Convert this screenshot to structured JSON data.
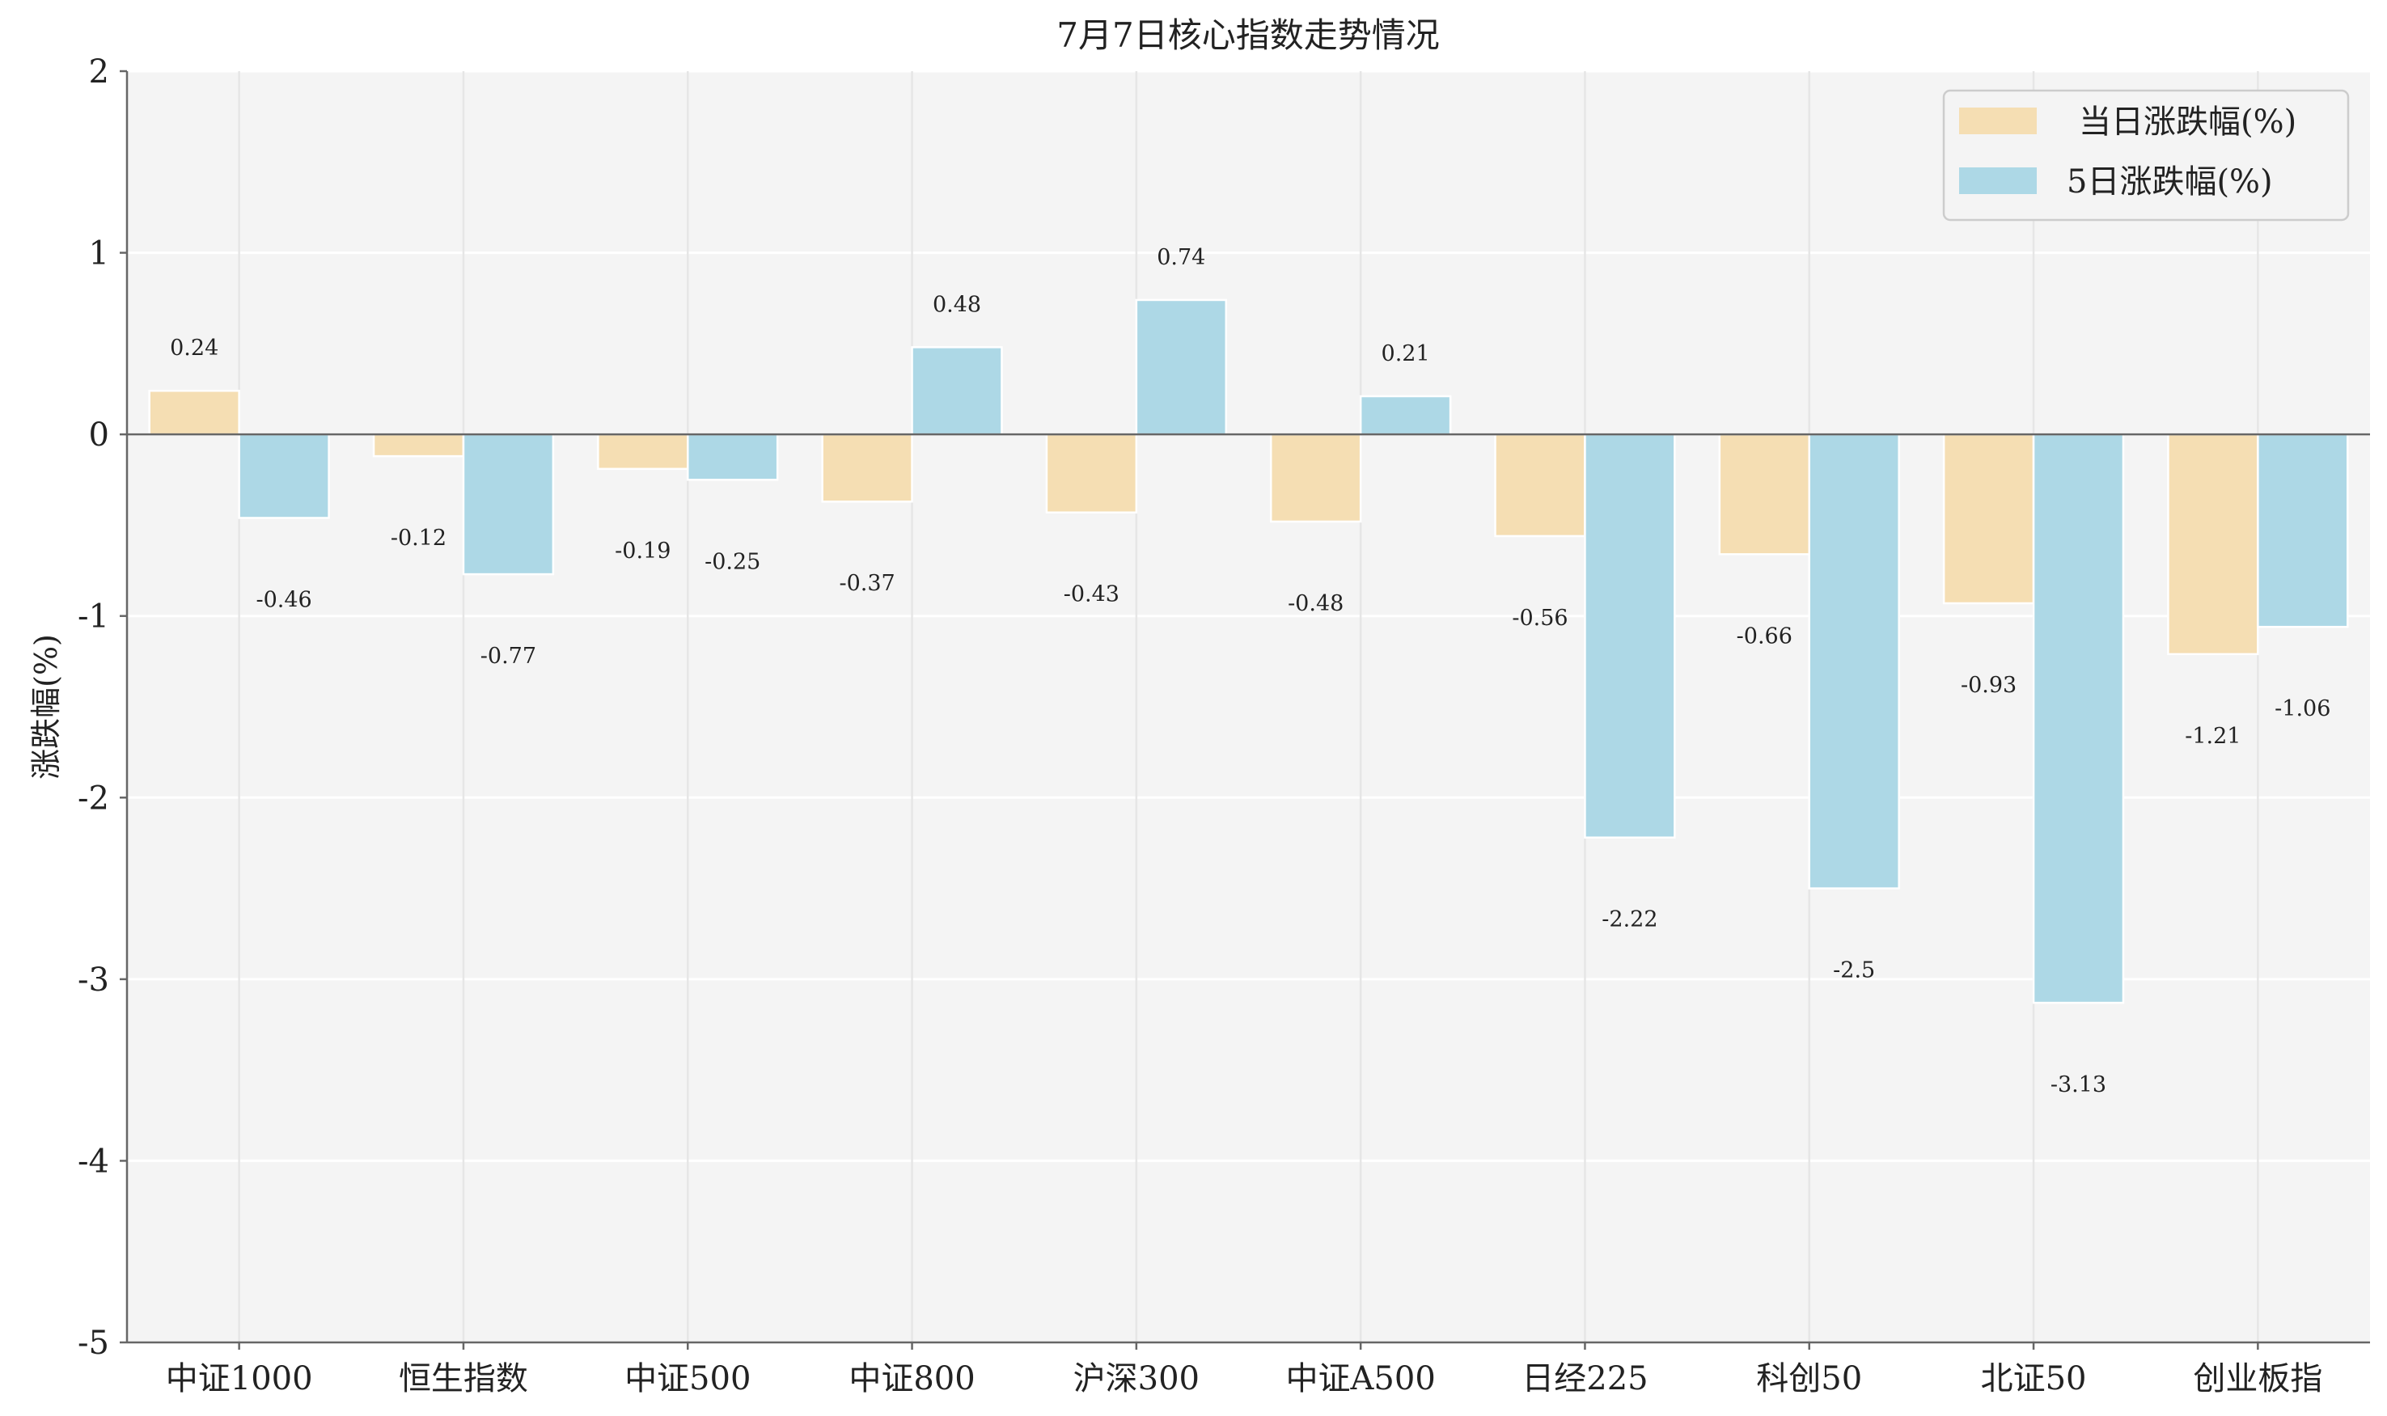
{
  "chart_data": {
    "type": "bar",
    "title": "7月7日核心指数走势情况",
    "xlabel": "",
    "ylabel": "涨跌幅(%)",
    "ylim": [
      -5,
      2
    ],
    "yticks": [
      "-5",
      "-4",
      "-3",
      "-2",
      "-1",
      "0",
      "1",
      "2"
    ],
    "grid": true,
    "legend_position": "top-right",
    "categories": [
      "中证1000",
      "恒生指数",
      "中证500",
      "中证800",
      "沪深300",
      "中证A500",
      "日经225",
      "科创50",
      "北证50",
      "创业板指"
    ],
    "series": [
      {
        "name": "当日涨跌幅(%)",
        "color": "#f5deb3",
        "values": [
          0.24,
          -0.12,
          -0.19,
          -0.37,
          -0.43,
          -0.48,
          -0.56,
          -0.66,
          -0.93,
          -1.21
        ],
        "labels": [
          "0.24",
          "-0.12",
          "-0.19",
          "-0.37",
          "-0.43",
          "-0.48",
          "-0.56",
          "-0.66",
          "-0.93",
          "-1.21"
        ]
      },
      {
        "name": "5日涨跌幅(%)",
        "color": "#add8e6",
        "values": [
          -0.46,
          -0.77,
          -0.25,
          0.48,
          0.74,
          0.21,
          -2.22,
          -2.5,
          -3.13,
          -1.06
        ],
        "labels": [
          "-0.46",
          "-0.77",
          "-0.25",
          "0.48",
          "0.74",
          "0.21",
          "-2.22",
          "-2.5",
          "-3.13",
          "-1.06"
        ]
      }
    ]
  }
}
